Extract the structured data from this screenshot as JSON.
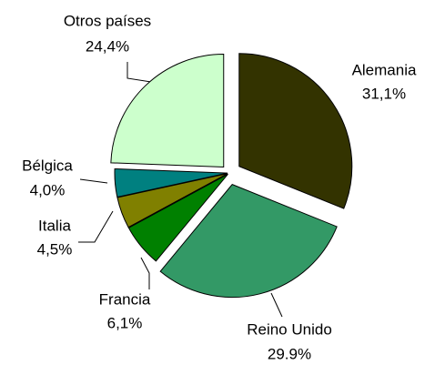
{
  "chart_data": {
    "type": "pie",
    "categories": [
      "Alemania",
      "Reino Unido",
      "Francia",
      "Italia",
      "Bélgica",
      "Otros países"
    ],
    "values": [
      31.1,
      29.9,
      6.1,
      4.5,
      4.0,
      24.4
    ],
    "value_labels": [
      "31,1%",
      "29.9%",
      "6,1%",
      "4,5%",
      "4,0%",
      "24,4%"
    ],
    "colors": [
      "#333300",
      "#339966",
      "#008000",
      "#808000",
      "#008080",
      "#ccffcc"
    ]
  }
}
